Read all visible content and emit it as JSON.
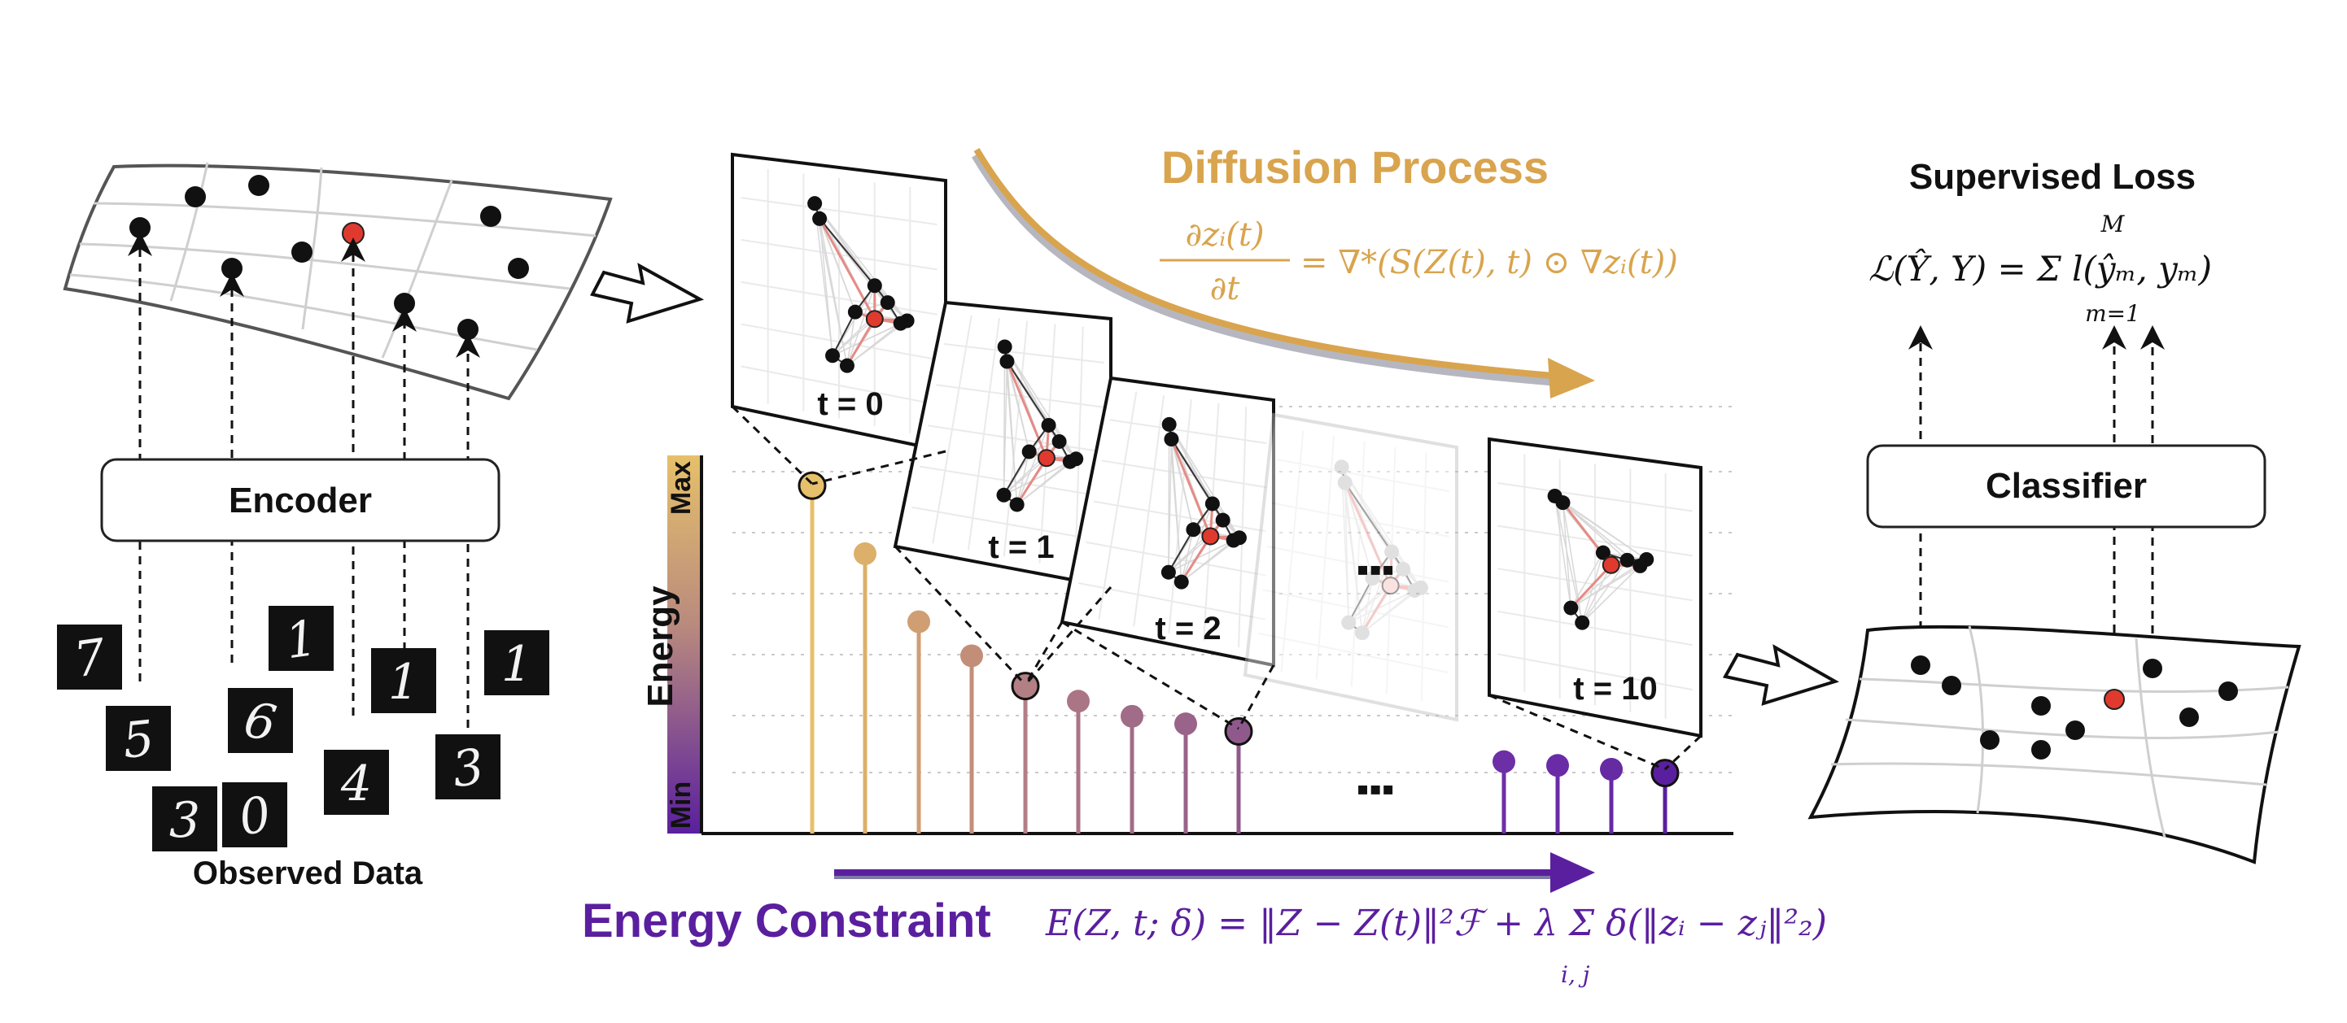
{
  "labels": {
    "encoder": "Encoder",
    "observed_data": "Observed Data",
    "classifier": "Classifier",
    "supervised_loss": "Supervised Loss",
    "diffusion_process": "Diffusion Process",
    "energy_constraint": "Energy Constraint",
    "energy_axis": "Energy",
    "energy_max": "Max",
    "energy_min": "Min",
    "ellipsis": "▪▪▪"
  },
  "equations": {
    "diffusion_lhs": "∂zᵢ(t)",
    "diffusion_den": "∂t",
    "diffusion_rhs": "= ∇*(S(Z(t), t) ⊙ ∇zᵢ(t))",
    "loss": "ℒ(Ŷ, Y) = Σ l(ŷₘ, yₘ)",
    "loss_top": "M",
    "loss_bottom": "m=1",
    "energy_main": "E(Z, t; δ) = ‖Z − Z(t)‖²ℱ + λ Σ δ(‖zᵢ − zⱼ‖²₂)",
    "energy_sub": "i, j"
  },
  "time_labels": [
    "t = 0",
    "t = 1",
    "t = 2",
    "t = 10"
  ],
  "digits": [
    "7",
    "5",
    "3",
    "6",
    "0",
    "1",
    "4",
    "1",
    "3",
    "1"
  ],
  "colors": {
    "diffusion": "#d9a44e",
    "energy": "#5a1f9e",
    "highlight": "#e03a2f"
  },
  "chart_data": {
    "type": "stem",
    "title": "",
    "ylabel": "Energy",
    "y_range_labels": [
      "Min",
      "Max"
    ],
    "series": [
      {
        "name": "energy_early",
        "values": [
          0.92,
          0.74,
          0.56,
          0.47,
          0.39,
          0.35,
          0.31,
          0.29,
          0.27
        ]
      },
      {
        "name": "energy_late",
        "values": [
          0.19,
          0.18,
          0.17,
          0.16
        ]
      }
    ]
  }
}
